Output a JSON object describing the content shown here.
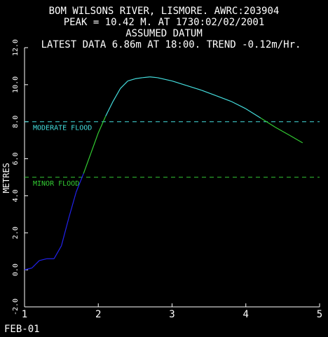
{
  "header": {
    "line1": "BOM WILSONS RIVER, LISMORE. AWRC:203904",
    "line2": "PEAK = 10.42 M. AT 1730:02/02/2001",
    "line3": "ASSUMED DATUM",
    "line4": "LATEST DATA  6.86m AT 18:00. TREND -0.12m/Hr."
  },
  "colors": {
    "background": "#000000",
    "axis": "#ffffff",
    "text": "#ffffff",
    "moderate": "#44dddd",
    "minor": "#33cc33",
    "below_minor": "#2222ee"
  },
  "chart_data": {
    "type": "line",
    "ylabel": "METRES",
    "x_corner_label": "FEB-01",
    "xlim": [
      1,
      5
    ],
    "ylim": [
      -2,
      12
    ],
    "x_ticks": [
      "1",
      "2",
      "3",
      "4",
      "5"
    ],
    "y_ticks": [
      "-2.0",
      "0.0",
      "2.0",
      "4.0",
      "6.0",
      "8.0",
      "10.0",
      "12.0"
    ],
    "grid": false,
    "thresholds": [
      {
        "label": "MODERATE FLOOD",
        "value": 8.0
      },
      {
        "label": "MINOR FLOOD",
        "value": 5.0
      }
    ],
    "series": [
      {
        "x": [
          1.0,
          1.1,
          1.2,
          1.3,
          1.4,
          1.5,
          1.6,
          1.7,
          1.75,
          1.8,
          1.9,
          2.0,
          2.1,
          2.2,
          2.3,
          2.4,
          2.5,
          2.6,
          2.7,
          2.8,
          3.0,
          3.2,
          3.4,
          3.6,
          3.8,
          4.0,
          4.2,
          4.4,
          4.6,
          4.77
        ],
        "y": [
          0.0,
          0.1,
          0.5,
          0.6,
          0.6,
          1.3,
          2.8,
          4.2,
          4.7,
          5.2,
          6.3,
          7.4,
          8.3,
          9.1,
          9.8,
          10.2,
          10.32,
          10.38,
          10.42,
          10.38,
          10.2,
          9.95,
          9.7,
          9.4,
          9.1,
          8.7,
          8.2,
          7.7,
          7.25,
          6.86
        ]
      }
    ]
  }
}
